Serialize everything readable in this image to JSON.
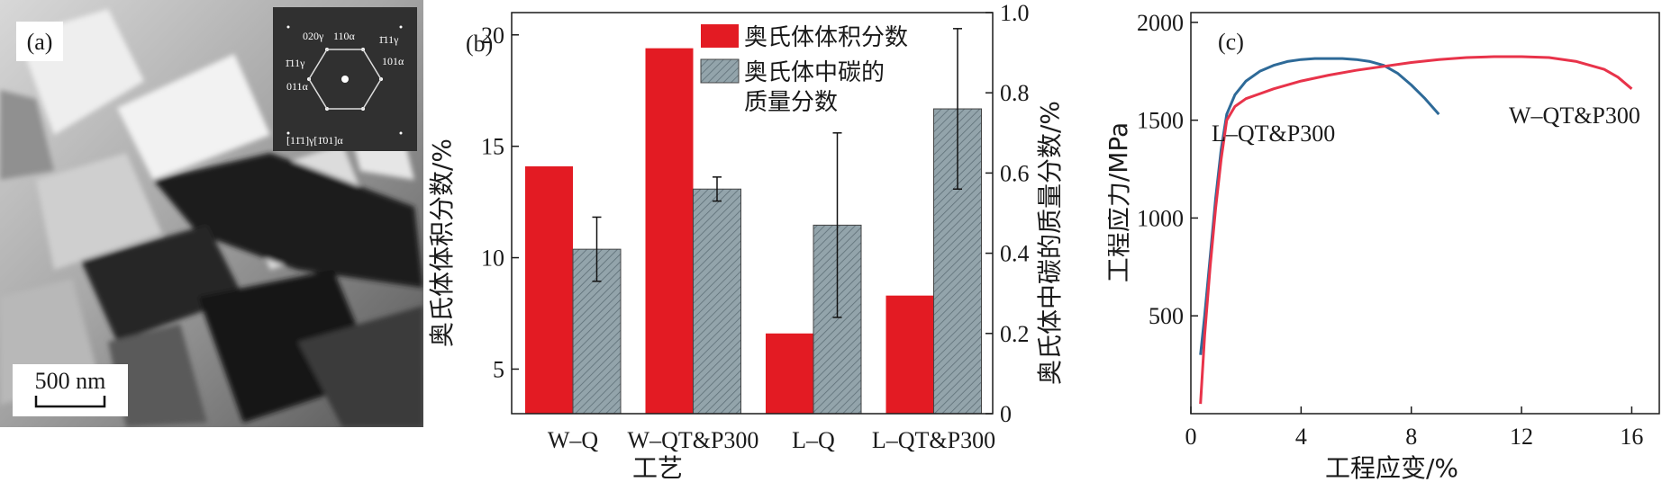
{
  "colors": {
    "red": "#e31b23",
    "gray": "#93a4ab",
    "blue": "#2e6a98",
    "line_red": "#e8334a",
    "axis": "#1a1a1a"
  },
  "panel_a": {
    "label": "(a)",
    "scale_bar": "500 nm",
    "diffraction_labels": [
      "020γ",
      "110α",
      "1̄11γ",
      "101α",
      "1̄11γ",
      "011α",
      "[11̄1]γ[1̄01]α"
    ]
  },
  "chart_data": [
    {
      "type": "bar",
      "label": "(b)",
      "categories": [
        "W–Q",
        "W–QT&P300",
        "L–Q",
        "L–QT&P300"
      ],
      "xlabel": "工艺",
      "ylabel_left": "奥氏体体积分数/%",
      "ylabel_right": "奥氏体中碳的质量分数/%",
      "ylim_left": [
        3,
        21
      ],
      "yticks_left": [
        5,
        10,
        15,
        20
      ],
      "ylim_right": [
        0,
        1.0
      ],
      "yticks_right": [
        "0",
        "0.2",
        "0.4",
        "0.6",
        "0.8",
        "1.0"
      ],
      "series": [
        {
          "name": "奥氏体体积分数",
          "axis": "left",
          "values": [
            14.1,
            19.4,
            6.6,
            8.3
          ]
        },
        {
          "name_lines": [
            "奥氏体中碳的",
            "质量分数"
          ],
          "axis": "right",
          "values": [
            0.41,
            0.56,
            0.47,
            0.76
          ],
          "errors": [
            0.08,
            0.03,
            0.23,
            0.2
          ]
        }
      ]
    },
    {
      "type": "line",
      "label": "(c)",
      "xlabel": "工程应变/%",
      "ylabel": "工程应力/MPa",
      "xlim": [
        0,
        17
      ],
      "ylim": [
        0,
        2050
      ],
      "xticks": [
        0,
        4,
        8,
        12,
        16
      ],
      "yticks": [
        500,
        1000,
        1500,
        2000
      ],
      "series": [
        {
          "name": "L–QT&P300",
          "color": "blue",
          "x": [
            0.35,
            0.5,
            0.7,
            0.9,
            1.1,
            1.3,
            1.6,
            2,
            2.5,
            3,
            3.5,
            4,
            4.5,
            5,
            5.5,
            6,
            6.5,
            7,
            7.5,
            8,
            8.5,
            9
          ],
          "y": [
            300,
            500,
            800,
            1100,
            1350,
            1530,
            1630,
            1700,
            1750,
            1780,
            1800,
            1810,
            1815,
            1815,
            1815,
            1810,
            1800,
            1780,
            1740,
            1680,
            1610,
            1530
          ]
        },
        {
          "name": "W–QT&P300",
          "color": "line_red",
          "x": [
            0.35,
            0.5,
            0.7,
            0.9,
            1.1,
            1.3,
            1.6,
            2,
            3,
            4,
            5,
            6,
            7,
            8,
            9,
            10,
            11,
            12,
            13,
            14,
            15,
            15.5,
            16
          ],
          "y": [
            50,
            400,
            750,
            1050,
            1300,
            1500,
            1570,
            1610,
            1660,
            1700,
            1730,
            1755,
            1775,
            1795,
            1810,
            1820,
            1825,
            1825,
            1820,
            1800,
            1760,
            1720,
            1660
          ]
        }
      ]
    }
  ]
}
